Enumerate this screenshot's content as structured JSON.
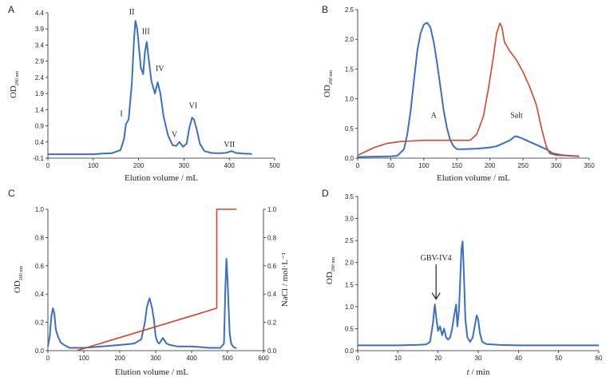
{
  "chart_data": [
    {
      "panel": "A",
      "type": "line",
      "xlabel": "Elution volume / mL",
      "ylabel_main": "OD",
      "ylabel_sub": "280 nm",
      "xlim": [
        0,
        500
      ],
      "ylim": [
        -0.1,
        4.4
      ],
      "xticks": [
        0,
        100,
        200,
        300,
        400,
        500
      ],
      "yticks": [
        -0.1,
        0.4,
        0.9,
        1.4,
        1.9,
        2.4,
        2.9,
        3.4,
        3.9,
        4.4
      ],
      "yticklabels": [
        "-0.1",
        "0.4",
        "0.9",
        "1.4",
        "1.9",
        "2.4",
        "2.9",
        "3.4",
        "3.9",
        "4.4"
      ],
      "series": [
        {
          "name": "OD280",
          "color": "#3a6fc4",
          "x": [
            0,
            100,
            120,
            140,
            160,
            168,
            172,
            178,
            185,
            190,
            193,
            197,
            205,
            210,
            214,
            218,
            222,
            228,
            236,
            242,
            248,
            255,
            265,
            275,
            283,
            290,
            298,
            306,
            312,
            318,
            322,
            328,
            335,
            345,
            360,
            380,
            395,
            405,
            415,
            430,
            450
          ],
          "y": [
            0.02,
            0.02,
            0.04,
            0.05,
            0.15,
            0.5,
            0.95,
            1.1,
            2.2,
            3.6,
            4.15,
            3.9,
            2.7,
            2.5,
            3.2,
            3.5,
            3.0,
            2.3,
            1.9,
            2.25,
            1.9,
            1.2,
            0.6,
            0.3,
            0.28,
            0.4,
            0.25,
            0.35,
            0.85,
            1.15,
            1.1,
            0.8,
            0.35,
            0.12,
            0.06,
            0.05,
            0.07,
            0.12,
            0.06,
            0.04,
            0.03
          ]
        }
      ],
      "annotations": [
        {
          "text": "I",
          "x": 162,
          "y": 1.2
        },
        {
          "text": "II",
          "x": 185,
          "y": 4.35
        },
        {
          "text": "III",
          "x": 216,
          "y": 3.75
        },
        {
          "text": "IV",
          "x": 247,
          "y": 2.6
        },
        {
          "text": "V",
          "x": 279,
          "y": 0.55
        },
        {
          "text": "VI",
          "x": 320,
          "y": 1.45
        },
        {
          "text": "VII",
          "x": 400,
          "y": 0.25
        }
      ]
    },
    {
      "panel": "B",
      "type": "line",
      "xlabel": "Elution volume / mL",
      "ylabel_main": "OD",
      "ylabel_sub": "280 nm",
      "xlim": [
        0,
        350
      ],
      "ylim": [
        0,
        2.5
      ],
      "xticks": [
        0,
        50,
        100,
        150,
        200,
        250,
        300,
        350
      ],
      "yticks": [
        0,
        0.5,
        1.0,
        1.5,
        2.0,
        2.5
      ],
      "yticklabels": [
        "0.0",
        "0.5",
        "1.0",
        "1.5",
        "2.0",
        "2.5"
      ],
      "series": [
        {
          "name": "A",
          "color": "#3a6fc4",
          "x": [
            0,
            50,
            60,
            70,
            75,
            80,
            85,
            90,
            95,
            100,
            105,
            110,
            115,
            120,
            125,
            130,
            135,
            140,
            145,
            150,
            160,
            180,
            200,
            210,
            220,
            230,
            238,
            245,
            255,
            265,
            275,
            285,
            295,
            310,
            320,
            335
          ],
          "y": [
            0.02,
            0.03,
            0.04,
            0.15,
            0.4,
            0.8,
            1.3,
            1.8,
            2.1,
            2.25,
            2.28,
            2.2,
            1.95,
            1.6,
            1.2,
            0.8,
            0.5,
            0.3,
            0.2,
            0.15,
            0.15,
            0.16,
            0.18,
            0.2,
            0.25,
            0.3,
            0.37,
            0.35,
            0.3,
            0.25,
            0.2,
            0.15,
            0.08,
            0.05,
            0.04,
            0.03
          ]
        },
        {
          "name": "Salt",
          "color": "#d2452a",
          "x": [
            0,
            10,
            25,
            45,
            65,
            100,
            140,
            170,
            180,
            190,
            198,
            205,
            210,
            215,
            218,
            222,
            230,
            240,
            250,
            260,
            270,
            278,
            285,
            290,
            300,
            320,
            335
          ],
          "y": [
            0.05,
            0.1,
            0.18,
            0.25,
            0.28,
            0.3,
            0.3,
            0.3,
            0.4,
            0.7,
            1.2,
            1.7,
            2.1,
            2.27,
            2.2,
            1.95,
            1.8,
            1.65,
            1.45,
            1.2,
            0.9,
            0.5,
            0.2,
            0.08,
            0.05,
            0.04,
            0.03
          ]
        }
      ],
      "annotations": [
        {
          "text": "A",
          "x": 115,
          "y": 0.68
        },
        {
          "text": "Salt",
          "x": 240,
          "y": 0.68
        }
      ]
    },
    {
      "panel": "C",
      "type": "line",
      "xlabel": "Elution volume / mL",
      "ylabel_main": "OD",
      "ylabel_sub": "280 nm",
      "y2label": "NaCl / mol·L⁻¹",
      "xlim": [
        0,
        600
      ],
      "ylim": [
        0,
        1.0
      ],
      "y2lim": [
        0,
        1.0
      ],
      "xticks": [
        0,
        100,
        200,
        300,
        400,
        500,
        600
      ],
      "yticks": [
        0,
        0.2,
        0.4,
        0.6,
        0.8,
        1.0
      ],
      "yticklabels": [
        "0.0",
        "0.2",
        "0.4",
        "0.6",
        "0.8",
        "1.0"
      ],
      "series": [
        {
          "name": "OD280",
          "color": "#3a6fc4",
          "x": [
            0,
            5,
            10,
            14,
            18,
            22,
            28,
            35,
            45,
            60,
            100,
            150,
            200,
            240,
            260,
            270,
            275,
            280,
            283,
            286,
            290,
            295,
            300,
            305,
            310,
            320,
            330,
            340,
            360,
            400,
            450,
            480,
            490,
            494,
            497,
            500,
            503,
            506,
            510,
            515,
            520,
            525
          ],
          "y": [
            0.03,
            0.1,
            0.25,
            0.3,
            0.26,
            0.15,
            0.1,
            0.06,
            0.04,
            0.02,
            0.02,
            0.03,
            0.04,
            0.05,
            0.08,
            0.2,
            0.3,
            0.35,
            0.37,
            0.34,
            0.3,
            0.22,
            0.1,
            0.06,
            0.05,
            0.09,
            0.05,
            0.04,
            0.03,
            0.03,
            0.02,
            0.02,
            0.05,
            0.45,
            0.65,
            0.5,
            0.3,
            0.12,
            0.05,
            0.03,
            0.02,
            0.02
          ]
        },
        {
          "name": "NaCl",
          "color": "#d2452a",
          "axis": "right",
          "x": [
            80,
            470,
            470,
            525
          ],
          "y": [
            0,
            0.3,
            1.0,
            1.0
          ]
        }
      ]
    },
    {
      "panel": "D",
      "type": "line",
      "xlabel_italic": "t",
      "xlabel_rest": " / min",
      "ylabel_main": "OD",
      "ylabel_sub": "280 nm",
      "xlim": [
        0,
        60
      ],
      "ylim": [
        0,
        3.5
      ],
      "xticks": [
        0,
        10,
        20,
        30,
        40,
        50,
        60
      ],
      "yticks": [
        0,
        0.5,
        1.0,
        1.5,
        2.0,
        2.5,
        3.0,
        3.5
      ],
      "yticklabels": [
        "0.0",
        "0.5",
        "1.0",
        "1.5",
        "2.0",
        "2.5",
        "3.0",
        "3.5"
      ],
      "series": [
        {
          "name": "OD280",
          "color": "#3a6fc4",
          "x": [
            0,
            10,
            15,
            17,
            18,
            18.7,
            19.2,
            19.6,
            20.0,
            20.5,
            21,
            21.5,
            22,
            22.5,
            23,
            23.5,
            24,
            24.5,
            24.8,
            25.2,
            25.5,
            25.8,
            26.1,
            26.4,
            26.8,
            27.3,
            28,
            28.6,
            29.2,
            29.6,
            30,
            30.4,
            31,
            32,
            35,
            40,
            50,
            60
          ],
          "y": [
            0.12,
            0.12,
            0.13,
            0.14,
            0.2,
            0.6,
            1.05,
            0.7,
            0.45,
            0.55,
            0.35,
            0.5,
            0.3,
            0.25,
            0.3,
            0.5,
            0.8,
            1.05,
            0.55,
            0.9,
            1.6,
            2.3,
            2.48,
            1.8,
            0.7,
            0.3,
            0.2,
            0.3,
            0.6,
            0.8,
            0.7,
            0.4,
            0.2,
            0.15,
            0.13,
            0.12,
            0.12,
            0.12
          ]
        }
      ],
      "annotations": [
        {
          "text": "GBV-IV4",
          "x": 19.5,
          "y": 2.05,
          "arrow": true
        }
      ]
    }
  ]
}
